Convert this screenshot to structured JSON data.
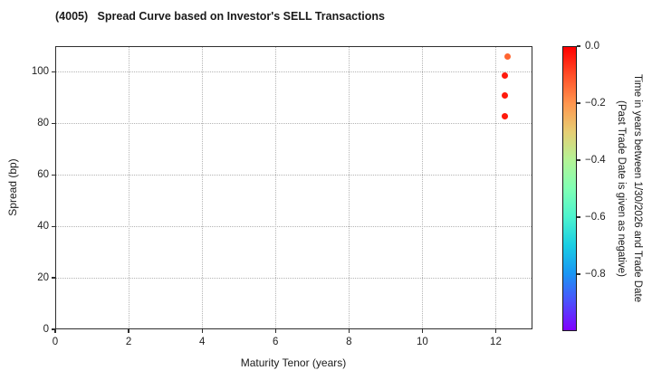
{
  "chart_data": {
    "type": "scatter",
    "title": "(4005)   Spread Curve based on Investor's SELL Transactions",
    "xlabel": "Maturity Tenor (years)",
    "ylabel": "Spread (bp)",
    "xlim": [
      0,
      13
    ],
    "ylim": [
      0,
      110
    ],
    "x_ticks": [
      0,
      2,
      4,
      6,
      8,
      10,
      12
    ],
    "y_ticks": [
      0,
      20,
      40,
      60,
      80,
      100
    ],
    "grid": {
      "style": "dotted",
      "color": "#b4b4b4"
    },
    "points": [
      {
        "x": 12.33,
        "y": 106.0,
        "time_years": -0.13,
        "color": "#ff6530"
      },
      {
        "x": 12.24,
        "y": 98.7,
        "time_years": -0.03,
        "color": "#ff1a0d"
      },
      {
        "x": 12.24,
        "y": 90.8,
        "time_years": -0.03,
        "color": "#ff1a0d"
      },
      {
        "x": 12.24,
        "y": 82.9,
        "time_years": -0.03,
        "color": "#ff1a0d"
      }
    ],
    "colorbar": {
      "label_line1": "Time in years between 1/30/2026 and Trade Date",
      "label_line2": "(Past Trade Date is given as negative)",
      "vmax": 0.0,
      "vmin": -1.0,
      "ticks": [
        {
          "label": "0.0",
          "value": 0.0
        },
        {
          "label": "−0.2",
          "value": -0.2
        },
        {
          "label": "−0.4",
          "value": -0.4
        },
        {
          "label": "−0.6",
          "value": -0.6
        },
        {
          "label": "−0.8",
          "value": -0.8
        }
      ],
      "colormap": "rainbow",
      "gradient": [
        "#ff0000",
        "#ff4f28",
        "#ff964f",
        "#e6ce74",
        "#b3f396",
        "#80ffb4",
        "#4df3ce",
        "#1acee3",
        "#1a96f3",
        "#4d4ffc",
        "#8000ff"
      ]
    },
    "axes_colors": {
      "spine": "#2e2e2e",
      "tick": "#2e2e2e",
      "text": "#1a1a1a"
    }
  }
}
